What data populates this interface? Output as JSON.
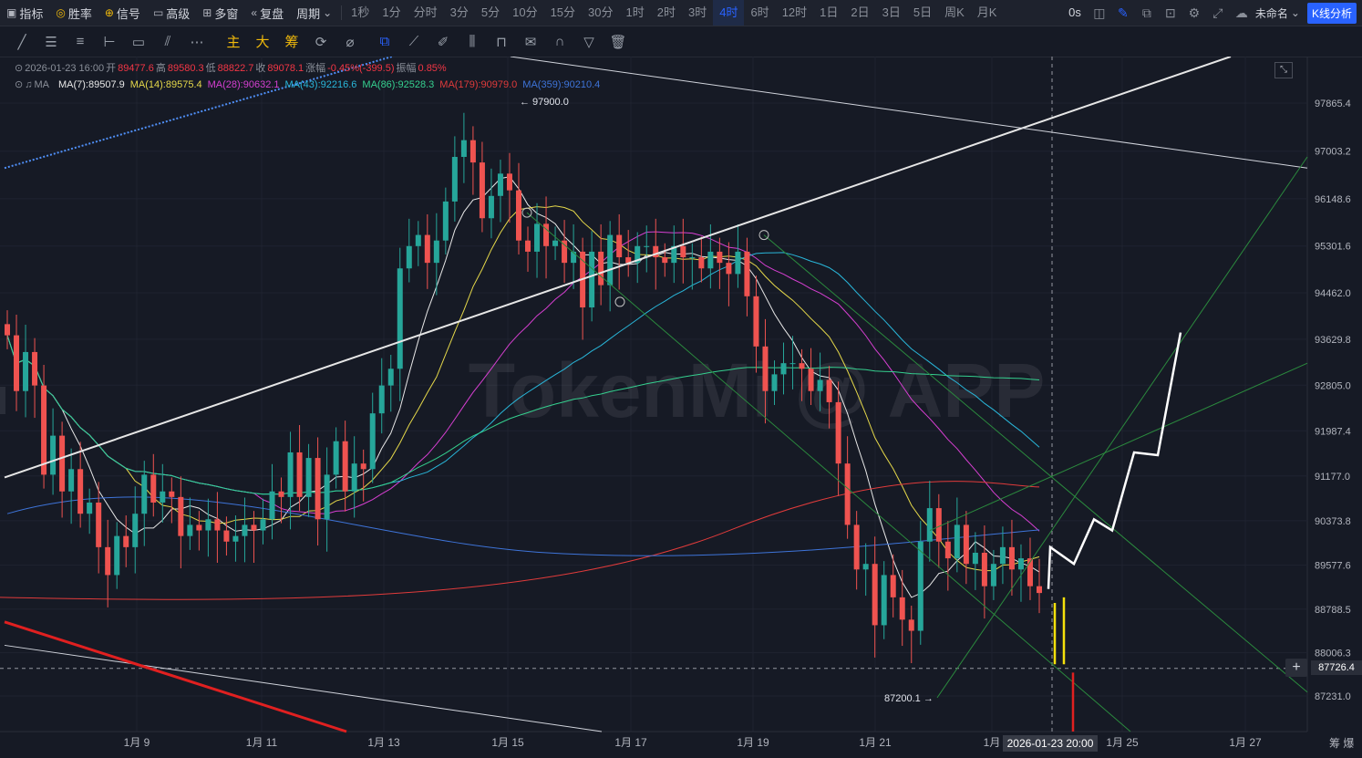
{
  "topbar": {
    "indicator": "指标",
    "winrate": "胜率",
    "signal": "信号",
    "advanced": "高级",
    "multiwin": "多窗",
    "replay": "复盘",
    "period_label": "周期",
    "periods": [
      "1秒",
      "1分",
      "分时",
      "3分",
      "5分",
      "10分",
      "15分",
      "30分",
      "1时",
      "2时",
      "3时",
      "4时",
      "6时",
      "12时",
      "1日",
      "2日",
      "3日",
      "5日",
      "周K",
      "月K"
    ],
    "active_period": "4时",
    "countdown": "0s",
    "layout_name": "未命名",
    "kline_button": "K线分析"
  },
  "drawbar": {
    "tools_left": [
      "trendline-tool",
      "hline-multi-tool",
      "parallel-tool",
      "hline-tool",
      "rect-tool",
      "fib-tool",
      "more-tool"
    ],
    "main_label": "主",
    "big_label": "大",
    "chip_label": "筹"
  },
  "legend": {
    "datetime": "2026-01-23 16:00",
    "open_label": "开",
    "open": "89477.6",
    "high_label": "高",
    "high": "89580.3",
    "low_label": "低",
    "low": "88822.7",
    "close_label": "收",
    "close": "89078.1",
    "change_label": "涨幅",
    "change": "-0.45%(-399.5)",
    "amp_label": "振幅",
    "amp": "0.85%",
    "ma_label": "MA",
    "mas": [
      {
        "text": "MA(7):89507.9",
        "color": "#e8e8e8"
      },
      {
        "text": "MA(14):89575.4",
        "color": "#e5d84a"
      },
      {
        "text": "MA(28):90632.1",
        "color": "#d63fd1"
      },
      {
        "text": "MA(43):92216.6",
        "color": "#29b6d9"
      },
      {
        "text": "MA(86):92528.3",
        "color": "#35d08f"
      },
      {
        "text": "MA(179):90979.0",
        "color": "#e03b3b"
      },
      {
        "text": "MA(359):90210.4",
        "color": "#3e74d9"
      }
    ]
  },
  "chart_data": {
    "type": "candlestick",
    "price_axis": [
      "97865.4",
      "97003.2",
      "96148.6",
      "95301.6",
      "94462.0",
      "93629.8",
      "92805.0",
      "91987.4",
      "91177.0",
      "90373.8",
      "89577.6",
      "88788.5",
      "88006.3",
      "87231.0"
    ],
    "price_levels": [
      97865.4,
      97003.2,
      96148.6,
      95301.6,
      94462.0,
      93629.8,
      92805.0,
      91987.4,
      91177.0,
      90373.8,
      89577.6,
      88788.5,
      88006.3,
      87231.0
    ],
    "time_axis": [
      "1月 9",
      "1月 11",
      "1月 13",
      "1月 15",
      "1月 17",
      "1月 19",
      "1月 21",
      "1月",
      "1月 25",
      "1月 27"
    ],
    "crosshair_price": "87726.4",
    "crosshair_time": "2026-01-23 20:00",
    "high_mark": "97900.0",
    "low_mark": "87200.1",
    "watermark": "TokenMi @ APP",
    "colors": {
      "up": "#26a69a",
      "down": "#ef5350"
    }
  },
  "corner_label": "筹  爆"
}
